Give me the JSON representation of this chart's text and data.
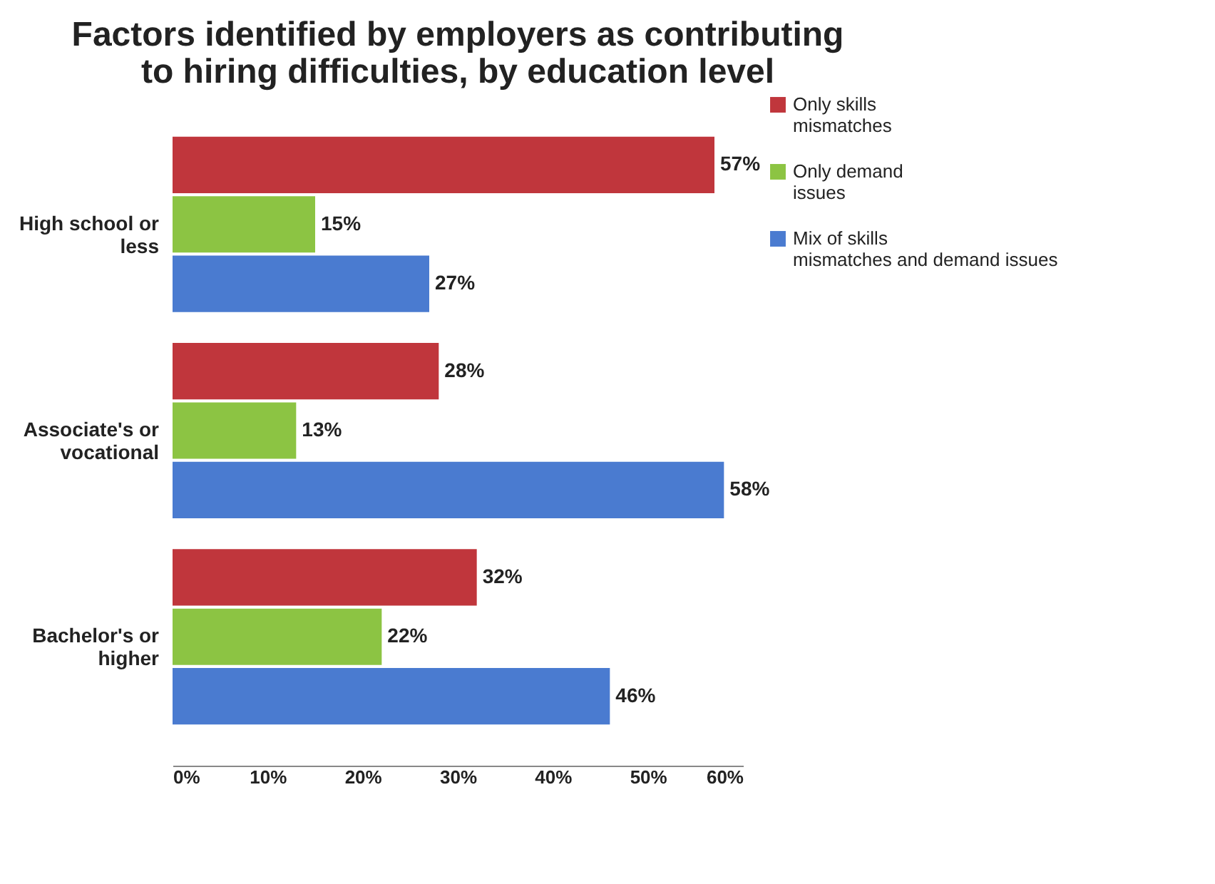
{
  "chart_data": {
    "type": "bar",
    "orientation": "horizontal",
    "title": "Factors identified by employers as contributing to hiring difficulties, by education level",
    "categories": [
      "High school or less",
      "Associate's or vocational",
      "Bachelor's or higher"
    ],
    "series": [
      {
        "name": "Only skills mismatches",
        "color": "#c0363c",
        "values": [
          57,
          28,
          32
        ],
        "value_labels": [
          "57%",
          "28%",
          "32%"
        ]
      },
      {
        "name": "Only demand issues",
        "color": "#8cc443",
        "values": [
          15,
          13,
          22
        ],
        "value_labels": [
          "15%",
          "13%",
          "22%"
        ]
      },
      {
        "name": "Mix of skills mismatches and demand issues",
        "color": "#4a7bd0",
        "values": [
          27,
          58,
          46
        ],
        "value_labels": [
          "27%",
          "58%",
          "46%"
        ]
      }
    ],
    "xlim": [
      0,
      60
    ],
    "xticks": [
      {
        "value": 0,
        "label": "0%"
      },
      {
        "value": 10,
        "label": "10%"
      },
      {
        "value": 20,
        "label": "20%"
      },
      {
        "value": 30,
        "label": "30%"
      },
      {
        "value": 40,
        "label": "40%"
      },
      {
        "value": 50,
        "label": "50%"
      },
      {
        "value": 60,
        "label": "60%"
      }
    ],
    "legend": "right"
  }
}
